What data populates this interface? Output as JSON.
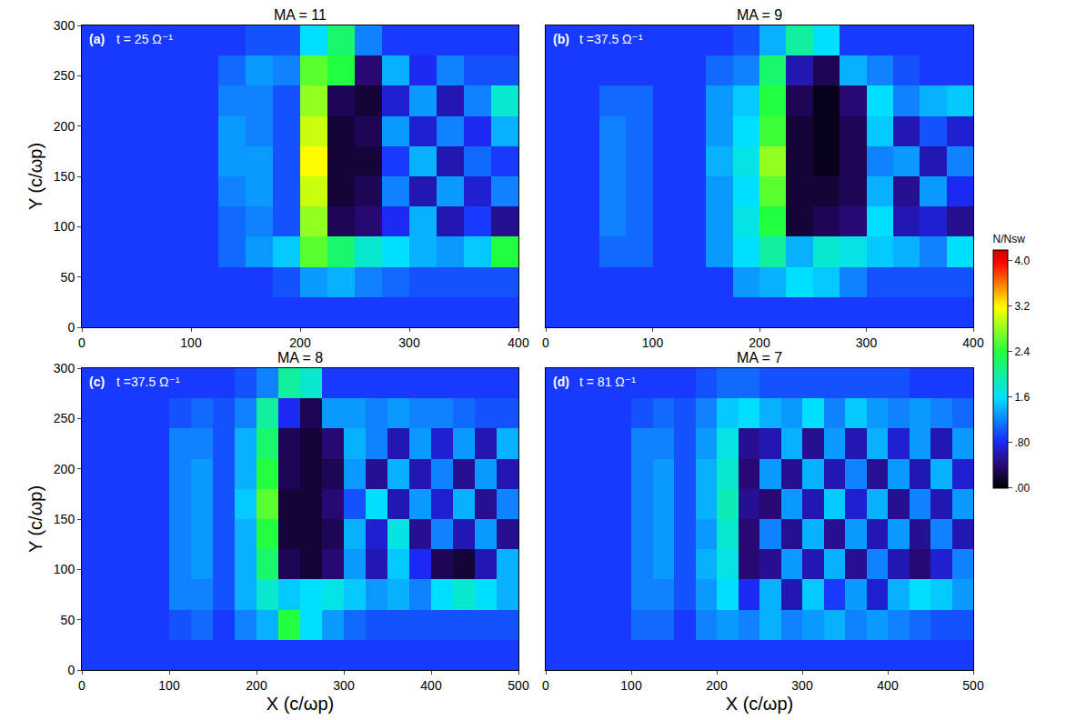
{
  "chart_data": [
    {
      "type": "heatmap",
      "title": "MA = 11",
      "panel": "(a)",
      "time": "t = 25 Ω⁻¹",
      "y_label": "Y (c/ωp)",
      "tick_labels": true,
      "xlim": [
        0,
        400
      ],
      "ylim": [
        0,
        300
      ],
      "zlim": [
        0,
        4.2
      ],
      "xticks": [
        0,
        100,
        200,
        300,
        400
      ],
      "yticks": [
        0,
        50,
        100,
        150,
        200,
        250,
        300
      ],
      "x": [
        12.5,
        37.5,
        62.5,
        87.5,
        112.5,
        137.5,
        162.5,
        187.5,
        212.5,
        237.5,
        262.5,
        287.5,
        312.5,
        337.5,
        362.5,
        387.5
      ],
      "y": [
        15,
        45,
        75,
        105,
        135,
        165,
        195,
        225,
        255,
        285
      ],
      "z": [
        [
          0.9,
          0.9,
          0.9,
          0.9,
          0.9,
          0.9,
          0.9,
          0.9,
          0.9,
          0.9,
          0.9,
          0.9,
          0.9,
          0.9,
          0.9,
          0.9
        ],
        [
          0.9,
          0.9,
          0.9,
          0.9,
          0.9,
          0.9,
          0.9,
          1.0,
          1.3,
          1.4,
          1.2,
          1.1,
          1.0,
          1.0,
          1.0,
          1.0
        ],
        [
          0.9,
          0.9,
          0.9,
          0.9,
          0.9,
          1.1,
          1.3,
          1.5,
          2.6,
          2.2,
          1.8,
          1.6,
          1.4,
          1.3,
          1.5,
          2.4
        ],
        [
          0.9,
          0.9,
          0.9,
          0.9,
          0.9,
          1.1,
          1.2,
          1.0,
          2.8,
          0.3,
          0.4,
          0.8,
          1.4,
          0.6,
          0.9,
          0.5
        ],
        [
          0.9,
          0.9,
          0.9,
          0.9,
          0.9,
          1.2,
          1.3,
          1.0,
          3.0,
          0.2,
          0.3,
          1.2,
          0.6,
          1.3,
          0.7,
          1.2
        ],
        [
          0.9,
          0.9,
          0.9,
          0.9,
          0.9,
          1.3,
          1.3,
          1.0,
          3.2,
          0.2,
          0.2,
          0.9,
          1.4,
          0.6,
          1.1,
          0.9
        ],
        [
          0.9,
          0.9,
          0.9,
          0.9,
          0.9,
          1.3,
          1.2,
          1.0,
          3.0,
          0.2,
          0.3,
          1.3,
          0.7,
          1.2,
          0.8,
          1.4
        ],
        [
          0.9,
          0.9,
          0.9,
          0.9,
          0.9,
          1.2,
          1.2,
          1.0,
          2.8,
          0.3,
          0.2,
          0.7,
          1.3,
          0.6,
          1.2,
          1.8
        ],
        [
          0.9,
          0.9,
          0.9,
          0.9,
          0.9,
          1.1,
          1.3,
          1.2,
          2.6,
          2.4,
          0.4,
          1.4,
          0.8,
          1.2,
          1.0,
          1.0
        ],
        [
          0.9,
          0.9,
          0.9,
          0.9,
          0.9,
          0.9,
          1.0,
          1.0,
          1.6,
          2.2,
          1.2,
          0.9,
          0.9,
          0.9,
          0.9,
          0.9
        ]
      ]
    },
    {
      "type": "heatmap",
      "title": "MA = 9",
      "panel": "(b)",
      "time": "t =37.5 Ω⁻¹",
      "tick_labels": "x",
      "xlim": [
        0,
        400
      ],
      "ylim": [
        0,
        300
      ],
      "zlim": [
        0,
        4.2
      ],
      "xticks": [
        0,
        100,
        200,
        300,
        400
      ],
      "colorbar": {
        "title": "N/Nsw",
        "range": [
          0,
          4.2
        ],
        "ticks": [
          {
            "value": 0,
            "label": ".00"
          },
          {
            "value": 0.8,
            "label": ".80"
          },
          1.6,
          2.4,
          3.2,
          {
            "value": 4,
            "label": "4.0"
          }
        ]
      },
      "x": [
        12.5,
        37.5,
        62.5,
        87.5,
        112.5,
        137.5,
        162.5,
        187.5,
        212.5,
        237.5,
        262.5,
        287.5,
        312.5,
        337.5,
        362.5,
        387.5
      ],
      "y": [
        15,
        45,
        75,
        105,
        135,
        165,
        195,
        225,
        255,
        285
      ],
      "z": [
        [
          0.9,
          0.9,
          0.9,
          0.9,
          0.9,
          0.9,
          0.9,
          0.9,
          0.9,
          0.9,
          0.9,
          0.9,
          0.9,
          0.9,
          0.9,
          0.9
        ],
        [
          0.9,
          0.9,
          0.9,
          0.9,
          0.9,
          0.9,
          0.9,
          1.3,
          1.4,
          1.6,
          1.5,
          1.2,
          1.0,
          1.0,
          1.0,
          1.0
        ],
        [
          0.9,
          0.9,
          1.1,
          1.1,
          0.9,
          0.9,
          1.3,
          1.6,
          2.0,
          1.4,
          1.8,
          1.7,
          1.5,
          1.4,
          1.2,
          1.6
        ],
        [
          0.9,
          0.9,
          1.2,
          1.1,
          0.9,
          0.9,
          1.3,
          1.7,
          2.4,
          0.2,
          0.3,
          0.4,
          1.6,
          0.6,
          0.7,
          0.5
        ],
        [
          0.9,
          0.9,
          1.2,
          1.1,
          0.9,
          0.9,
          1.3,
          1.6,
          2.6,
          0.2,
          0.2,
          0.3,
          1.4,
          0.5,
          1.3,
          0.8
        ],
        [
          0.9,
          0.9,
          1.2,
          1.1,
          0.9,
          0.9,
          1.4,
          1.7,
          2.8,
          0.2,
          0.1,
          0.3,
          1.2,
          1.3,
          0.6,
          1.2
        ],
        [
          0.9,
          0.9,
          1.2,
          1.1,
          0.9,
          0.9,
          1.3,
          1.6,
          2.5,
          0.2,
          0.1,
          0.3,
          1.5,
          0.6,
          1.0,
          0.7
        ],
        [
          0.9,
          0.9,
          1.1,
          1.1,
          0.9,
          0.9,
          1.3,
          1.5,
          2.4,
          0.3,
          0.1,
          0.4,
          1.6,
          1.2,
          1.4,
          1.5
        ],
        [
          0.9,
          0.9,
          0.9,
          0.9,
          0.9,
          0.9,
          1.1,
          1.2,
          2.2,
          0.6,
          0.3,
          1.4,
          1.2,
          1.0,
          0.9,
          0.9
        ],
        [
          0.9,
          0.9,
          0.9,
          0.9,
          0.9,
          0.9,
          0.9,
          1.0,
          1.4,
          2.0,
          1.6,
          0.9,
          0.9,
          0.9,
          0.9,
          0.9
        ]
      ]
    },
    {
      "type": "heatmap",
      "title": "MA = 8",
      "panel": "(c)",
      "time": "t =37.5 Ω⁻¹",
      "x_label": "X (c/ωp)",
      "y_label": "Y (c/ωp)",
      "tick_labels": true,
      "xlim": [
        0,
        500
      ],
      "ylim": [
        0,
        300
      ],
      "zlim": [
        0,
        4.2
      ],
      "xticks": [
        0,
        100,
        200,
        300,
        400,
        500
      ],
      "yticks": [
        0,
        50,
        100,
        150,
        200,
        250,
        300
      ],
      "x": [
        12.5,
        37.5,
        62.5,
        87.5,
        112.5,
        137.5,
        162.5,
        187.5,
        212.5,
        237.5,
        262.5,
        287.5,
        312.5,
        337.5,
        362.5,
        387.5,
        412.5,
        437.5,
        462.5,
        487.5
      ],
      "y": [
        15,
        45,
        75,
        105,
        135,
        165,
        195,
        225,
        255,
        285
      ],
      "z": [
        [
          0.9,
          0.9,
          0.9,
          0.9,
          0.9,
          0.9,
          0.9,
          0.9,
          0.9,
          0.9,
          0.9,
          0.9,
          0.9,
          0.9,
          0.9,
          0.9,
          0.9,
          0.9,
          0.9,
          0.9
        ],
        [
          0.9,
          0.9,
          0.9,
          0.9,
          1.0,
          1.1,
          0.9,
          1.2,
          1.4,
          2.4,
          1.6,
          1.3,
          1.1,
          1.0,
          1.0,
          1.0,
          1.0,
          1.0,
          1.0,
          1.0
        ],
        [
          0.9,
          0.9,
          0.9,
          0.9,
          1.2,
          1.2,
          1.0,
          1.4,
          1.8,
          1.5,
          1.6,
          1.7,
          1.5,
          1.3,
          1.4,
          1.2,
          1.6,
          1.8,
          1.6,
          1.4
        ],
        [
          0.9,
          0.9,
          0.9,
          0.9,
          1.2,
          1.3,
          1.0,
          1.4,
          2.2,
          0.3,
          0.2,
          0.4,
          1.3,
          0.6,
          1.5,
          0.8,
          0.3,
          0.2,
          0.6,
          1.4
        ],
        [
          0.9,
          0.9,
          0.9,
          0.9,
          1.2,
          1.3,
          1.0,
          1.4,
          2.4,
          0.2,
          0.2,
          0.3,
          1.4,
          0.7,
          1.7,
          0.5,
          1.2,
          0.6,
          1.3,
          0.5
        ],
        [
          0.9,
          0.9,
          0.9,
          0.9,
          1.2,
          1.3,
          1.0,
          1.5,
          2.6,
          0.2,
          0.2,
          0.4,
          1.0,
          1.6,
          0.6,
          1.3,
          0.7,
          1.4,
          0.5,
          1.2
        ],
        [
          0.9,
          0.9,
          0.9,
          0.9,
          1.2,
          1.3,
          1.0,
          1.4,
          2.4,
          0.3,
          0.2,
          0.3,
          1.3,
          0.5,
          1.4,
          0.6,
          1.2,
          0.5,
          1.3,
          0.6
        ],
        [
          0.9,
          0.9,
          0.9,
          0.9,
          1.2,
          1.2,
          1.0,
          1.4,
          2.2,
          0.3,
          0.2,
          0.4,
          1.4,
          1.2,
          0.6,
          1.3,
          0.7,
          1.3,
          0.6,
          1.4
        ],
        [
          0.9,
          0.9,
          0.9,
          0.9,
          1.0,
          1.1,
          1.0,
          1.2,
          2.0,
          0.8,
          0.3,
          1.3,
          1.3,
          1.2,
          1.3,
          1.2,
          1.2,
          1.1,
          1.0,
          1.0
        ],
        [
          0.9,
          0.9,
          0.9,
          0.9,
          0.9,
          0.9,
          0.9,
          1.0,
          1.2,
          2.0,
          1.8,
          0.9,
          0.9,
          0.9,
          0.9,
          0.9,
          0.9,
          0.9,
          0.9,
          0.9
        ]
      ]
    },
    {
      "type": "heatmap",
      "title": "MA = 7",
      "panel": "(d)",
      "time": "t = 81 Ω⁻¹",
      "x_label": "X (c/ωp)",
      "tick_labels": "x",
      "xlim": [
        0,
        500
      ],
      "ylim": [
        0,
        300
      ],
      "zlim": [
        0,
        4.2
      ],
      "xticks": [
        0,
        100,
        200,
        300,
        400,
        500
      ],
      "x": [
        12.5,
        37.5,
        62.5,
        87.5,
        112.5,
        137.5,
        162.5,
        187.5,
        212.5,
        237.5,
        262.5,
        287.5,
        312.5,
        337.5,
        362.5,
        387.5,
        412.5,
        437.5,
        462.5,
        487.5
      ],
      "y": [
        15,
        45,
        75,
        105,
        135,
        165,
        195,
        225,
        255,
        285
      ],
      "z": [
        [
          0.9,
          0.9,
          0.9,
          0.9,
          0.9,
          0.9,
          0.9,
          0.9,
          0.9,
          0.9,
          0.9,
          0.9,
          0.9,
          0.9,
          0.9,
          0.9,
          0.9,
          0.9,
          0.9,
          0.9
        ],
        [
          0.9,
          0.9,
          0.9,
          0.9,
          1.1,
          1.1,
          0.9,
          1.2,
          1.3,
          1.2,
          1.4,
          1.2,
          1.3,
          1.4,
          1.2,
          1.3,
          1.2,
          1.1,
          1.0,
          1.0
        ],
        [
          0.9,
          0.9,
          0.9,
          0.9,
          1.2,
          1.2,
          1.0,
          1.3,
          1.6,
          0.8,
          1.4,
          0.6,
          1.5,
          0.9,
          1.3,
          0.7,
          1.4,
          1.6,
          1.5,
          1.3
        ],
        [
          0.9,
          0.9,
          0.9,
          0.9,
          1.2,
          1.3,
          1.0,
          1.4,
          1.7,
          0.4,
          0.5,
          1.3,
          0.6,
          1.4,
          0.5,
          1.2,
          0.6,
          0.4,
          0.7,
          1.2
        ],
        [
          0.9,
          0.9,
          0.9,
          0.9,
          1.2,
          1.3,
          1.0,
          1.3,
          1.8,
          0.4,
          1.2,
          0.5,
          1.4,
          0.5,
          1.3,
          0.6,
          1.3,
          0.5,
          1.2,
          0.6
        ],
        [
          0.9,
          0.9,
          0.9,
          0.9,
          1.2,
          1.3,
          1.0,
          1.4,
          1.9,
          0.5,
          0.4,
          1.3,
          0.6,
          1.5,
          0.7,
          1.4,
          0.5,
          1.2,
          0.6,
          1.3
        ],
        [
          0.9,
          0.9,
          0.9,
          0.9,
          1.2,
          1.3,
          1.0,
          1.4,
          1.8,
          0.4,
          1.3,
          0.5,
          1.4,
          0.6,
          1.2,
          0.5,
          1.3,
          0.6,
          1.4,
          0.7
        ],
        [
          0.9,
          0.9,
          0.9,
          0.9,
          1.2,
          1.2,
          1.0,
          1.3,
          1.7,
          0.5,
          0.6,
          1.4,
          0.5,
          1.3,
          0.6,
          1.4,
          0.7,
          1.3,
          0.6,
          1.3
        ],
        [
          0.9,
          0.9,
          0.9,
          0.9,
          1.0,
          1.1,
          1.0,
          1.2,
          1.5,
          1.6,
          1.4,
          1.3,
          1.6,
          1.2,
          1.5,
          1.3,
          1.2,
          1.3,
          1.2,
          1.1
        ],
        [
          0.9,
          0.9,
          0.9,
          0.9,
          0.9,
          0.9,
          0.9,
          1.0,
          1.1,
          1.1,
          1.0,
          1.0,
          1.0,
          1.0,
          1.0,
          1.0,
          1.0,
          0.9,
          0.9,
          0.9
        ]
      ]
    }
  ]
}
